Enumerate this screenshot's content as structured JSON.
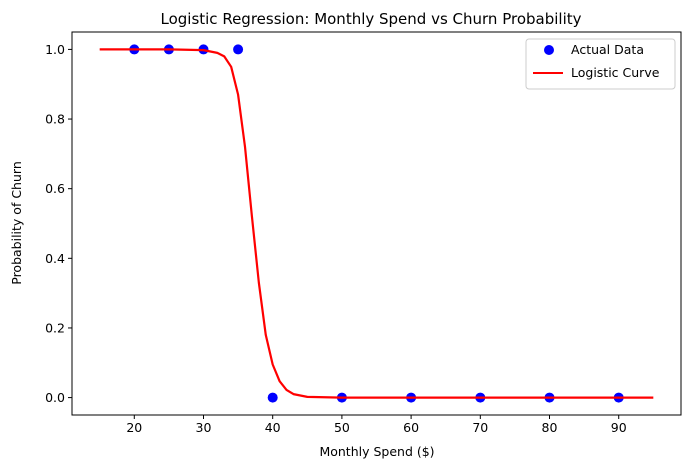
{
  "chart_data": {
    "type": "scatter",
    "title": "Logistic Regression: Monthly Spend vs Churn Probability",
    "xlabel": "Monthly Spend ($)",
    "ylabel": "Probability of Churn",
    "xlim": [
      11,
      99
    ],
    "ylim": [
      -0.05,
      1.05
    ],
    "xticks": [
      20,
      30,
      40,
      50,
      60,
      70,
      80,
      90
    ],
    "yticks": [
      0.0,
      0.2,
      0.4,
      0.6,
      0.8,
      1.0
    ],
    "grid": false,
    "legend_position": "top-right",
    "series": [
      {
        "name": "Actual Data",
        "kind": "scatter",
        "color": "#0000ff",
        "points": [
          {
            "x": 20,
            "y": 1
          },
          {
            "x": 25,
            "y": 1
          },
          {
            "x": 30,
            "y": 1
          },
          {
            "x": 35,
            "y": 1
          },
          {
            "x": 40,
            "y": 0
          },
          {
            "x": 50,
            "y": 0
          },
          {
            "x": 60,
            "y": 0
          },
          {
            "x": 70,
            "y": 0
          },
          {
            "x": 80,
            "y": 0
          },
          {
            "x": 90,
            "y": 0
          }
        ]
      },
      {
        "name": "Logistic Curve",
        "kind": "line",
        "color": "#ff0000",
        "points": [
          {
            "x": 15,
            "y": 1.0
          },
          {
            "x": 25,
            "y": 1.0
          },
          {
            "x": 30,
            "y": 0.998
          },
          {
            "x": 32,
            "y": 0.99
          },
          {
            "x": 33,
            "y": 0.98
          },
          {
            "x": 34,
            "y": 0.95
          },
          {
            "x": 35,
            "y": 0.87
          },
          {
            "x": 36,
            "y": 0.72
          },
          {
            "x": 37,
            "y": 0.52
          },
          {
            "x": 38,
            "y": 0.33
          },
          {
            "x": 39,
            "y": 0.18
          },
          {
            "x": 40,
            "y": 0.095
          },
          {
            "x": 41,
            "y": 0.047
          },
          {
            "x": 42,
            "y": 0.022
          },
          {
            "x": 43,
            "y": 0.01
          },
          {
            "x": 45,
            "y": 0.002
          },
          {
            "x": 50,
            "y": 0.0
          },
          {
            "x": 95,
            "y": 0.0
          }
        ]
      }
    ]
  }
}
